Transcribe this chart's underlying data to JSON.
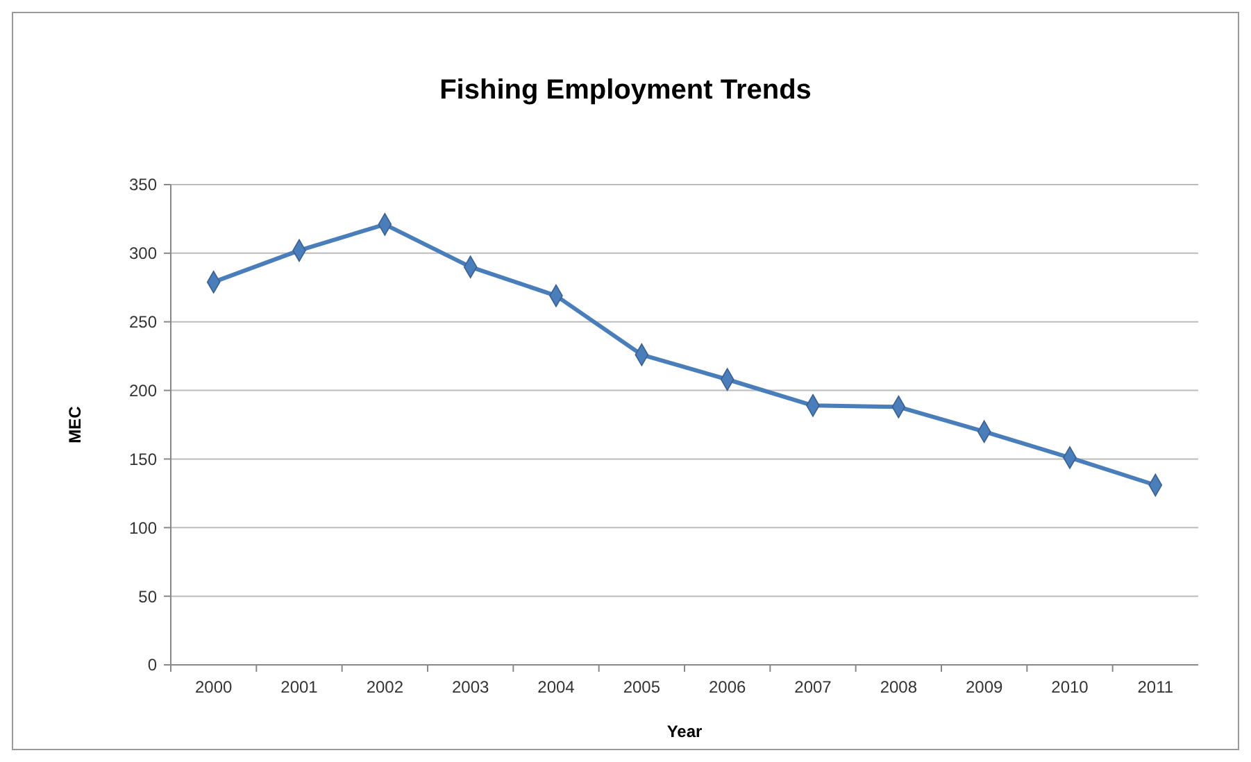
{
  "chart_data": {
    "type": "line",
    "title": "Fishing Employment Trends",
    "xlabel": "Year",
    "ylabel": "MEC",
    "categories": [
      "2000",
      "2001",
      "2002",
      "2003",
      "2004",
      "2005",
      "2006",
      "2007",
      "2008",
      "2009",
      "2010",
      "2011"
    ],
    "series": [
      {
        "color": "#4a7ebb",
        "values": [
          279,
          302,
          321,
          290,
          269,
          226,
          208,
          189,
          188,
          170,
          151,
          131
        ]
      }
    ],
    "ylim": [
      0,
      350
    ],
    "yticks": [
      0,
      50,
      100,
      150,
      200,
      250,
      300,
      350
    ],
    "grid": "y",
    "marker": "diamond",
    "line_style": "solid"
  }
}
